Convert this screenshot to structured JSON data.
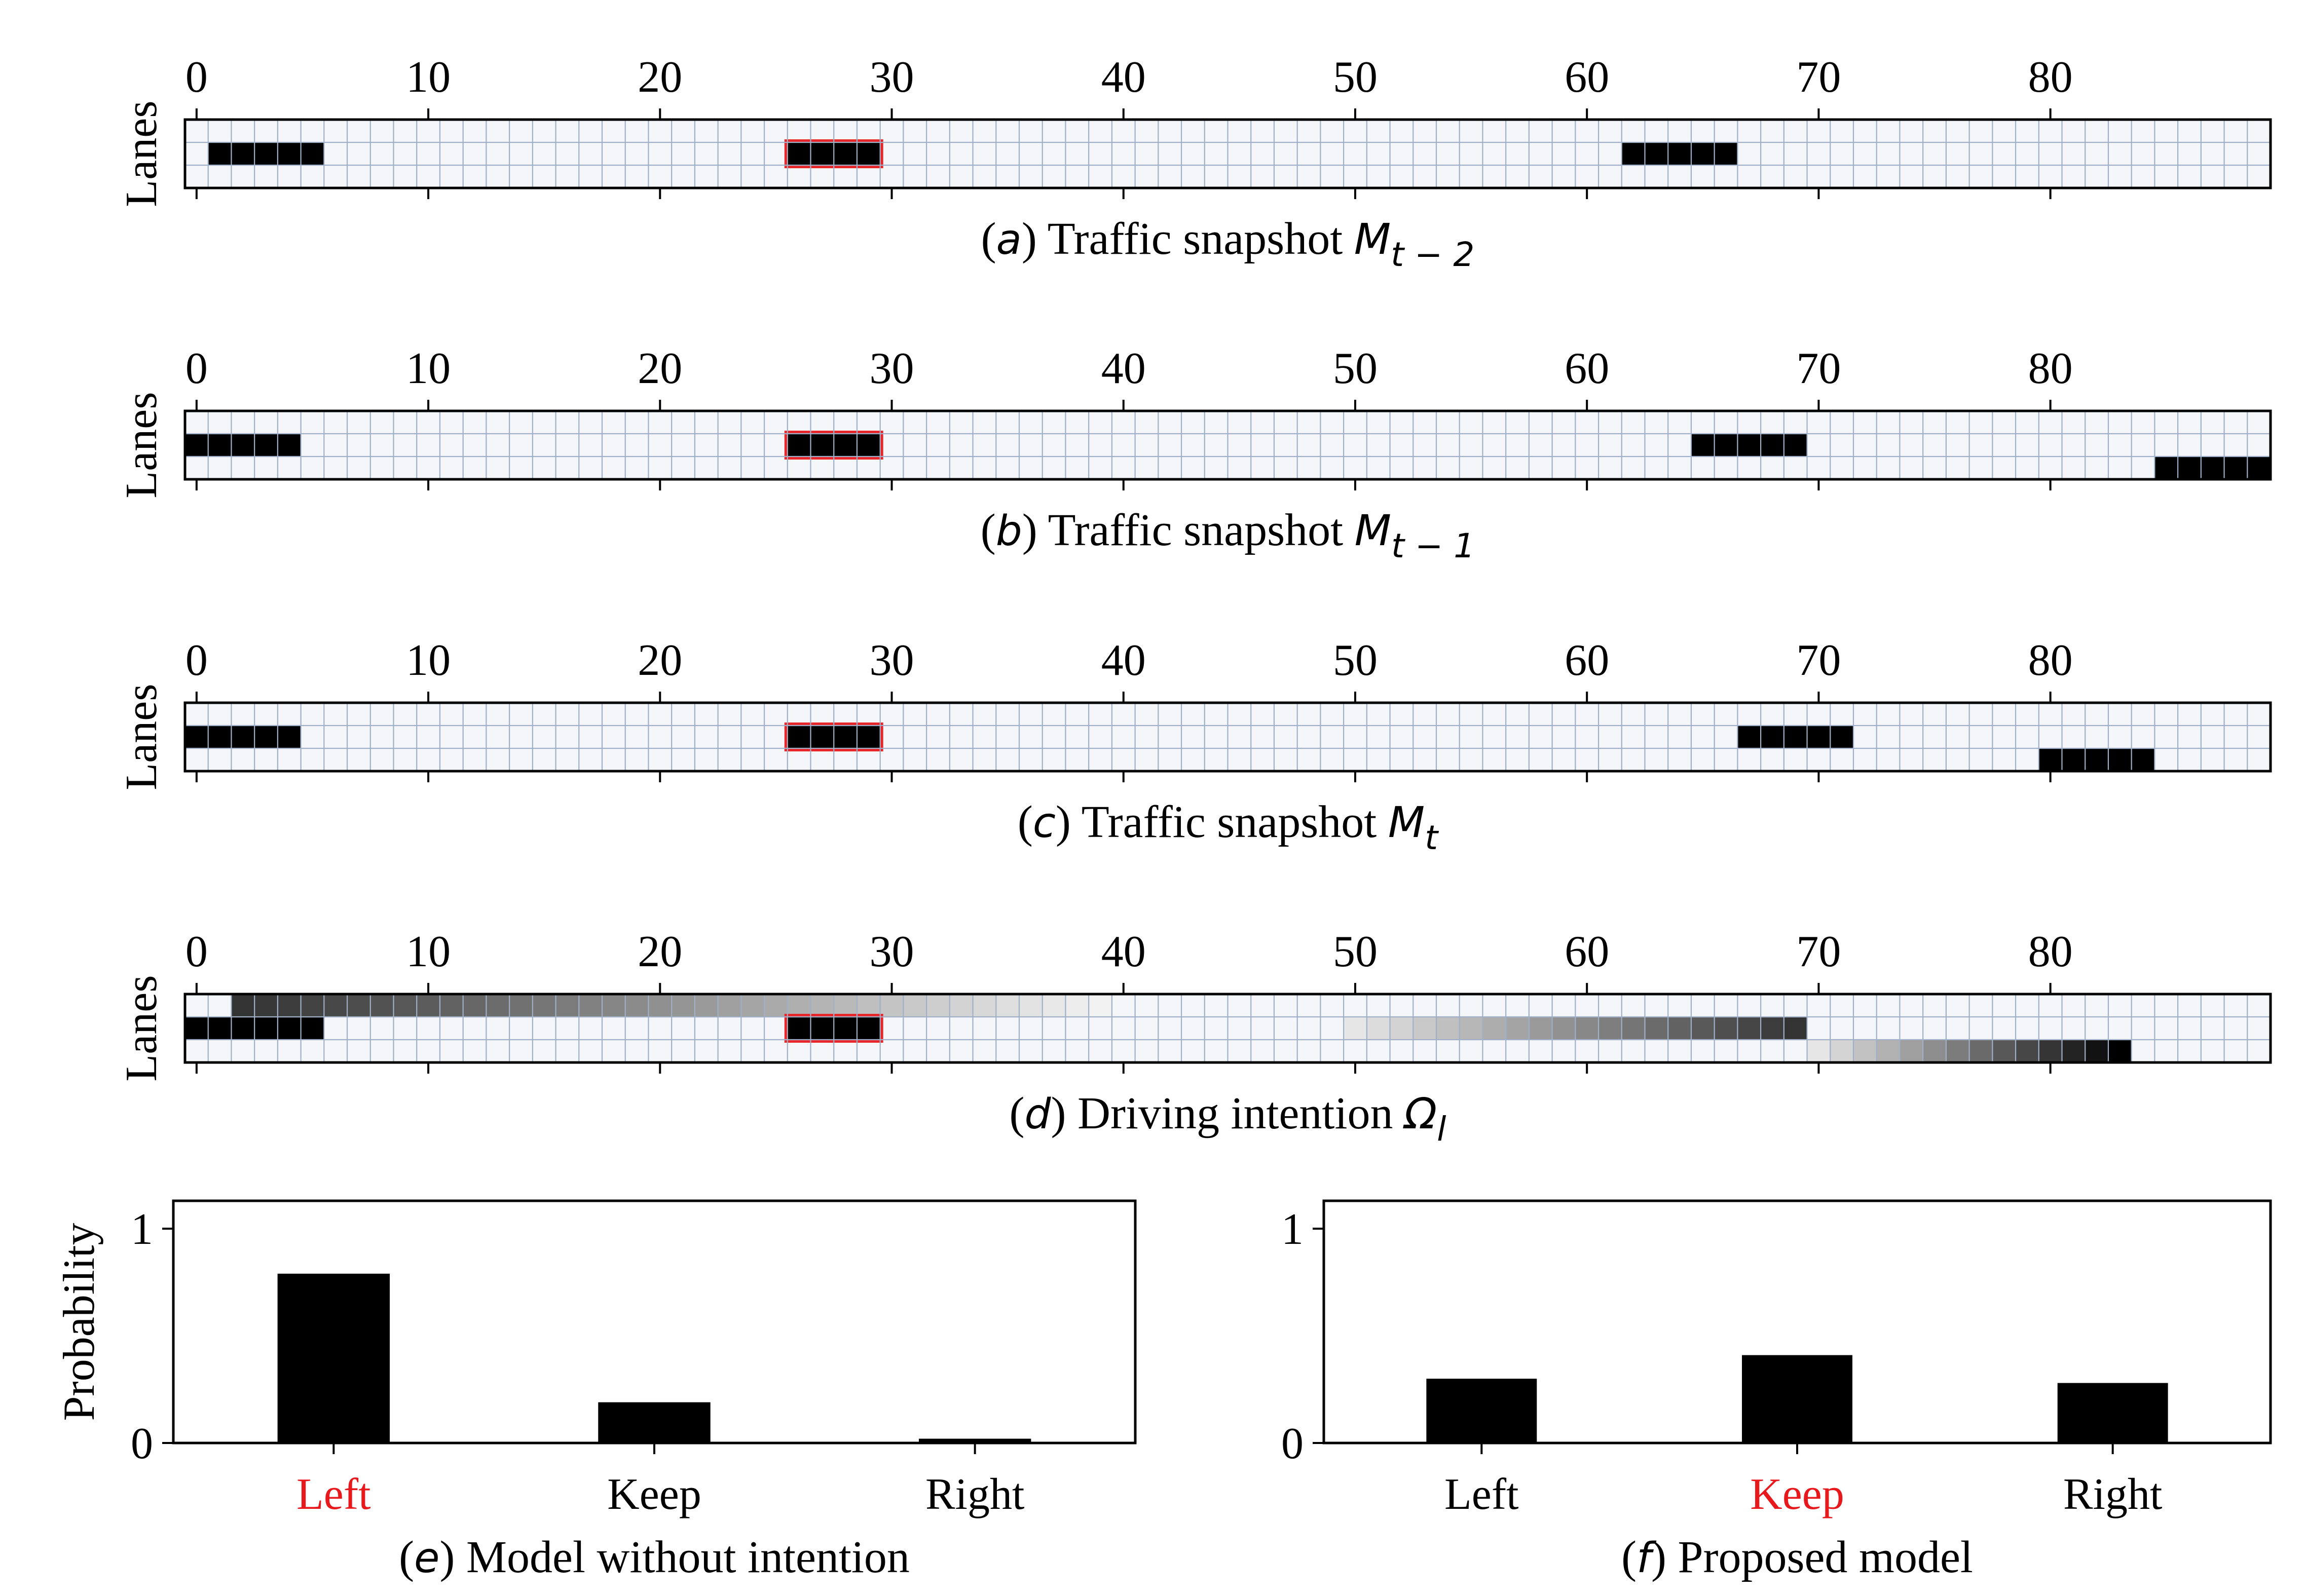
{
  "chart_data": [
    {
      "type": "heatmap",
      "title_prefix": "(",
      "panel_letter": "a",
      "title_text": ") Traffic snapshot ",
      "title_symbol": "M",
      "title_subscript": "t − 2",
      "ylabel": "Lanes",
      "xticks": [
        "0",
        "10",
        "20",
        "30",
        "40",
        "50",
        "60",
        "70",
        "80"
      ],
      "xlim": [
        -0.5,
        89.5
      ],
      "lanes": 3,
      "grid": true,
      "vehicles": [
        {
          "lane": 1,
          "start": 0.5,
          "end": 5.5,
          "ego": false
        },
        {
          "lane": 1,
          "start": 25.5,
          "end": 29.5,
          "ego": true
        },
        {
          "lane": 1,
          "start": 61.5,
          "end": 66.5,
          "ego": false
        }
      ]
    },
    {
      "type": "heatmap",
      "title_prefix": "(",
      "panel_letter": "b",
      "title_text": ") Traffic snapshot ",
      "title_symbol": "M",
      "title_subscript": "t − 1",
      "ylabel": "Lanes",
      "xticks": [
        "0",
        "10",
        "20",
        "30",
        "40",
        "50",
        "60",
        "70",
        "80"
      ],
      "xlim": [
        -0.5,
        89.5
      ],
      "lanes": 3,
      "grid": true,
      "vehicles": [
        {
          "lane": 1,
          "start": -0.5,
          "end": 4.5,
          "ego": false
        },
        {
          "lane": 1,
          "start": 25.5,
          "end": 29.5,
          "ego": true
        },
        {
          "lane": 1,
          "start": 64.5,
          "end": 69.5,
          "ego": false
        },
        {
          "lane": 2,
          "start": 84.5,
          "end": 89.5,
          "ego": false
        }
      ]
    },
    {
      "type": "heatmap",
      "title_prefix": "(",
      "panel_letter": "c",
      "title_text": ") Traffic snapshot ",
      "title_symbol": "M",
      "title_subscript": "t",
      "ylabel": "Lanes",
      "xticks": [
        "0",
        "10",
        "20",
        "30",
        "40",
        "50",
        "60",
        "70",
        "80"
      ],
      "xlim": [
        -0.5,
        89.5
      ],
      "lanes": 3,
      "grid": true,
      "vehicles": [
        {
          "lane": 1,
          "start": -0.5,
          "end": 4.5,
          "ego": false
        },
        {
          "lane": 1,
          "start": 25.5,
          "end": 29.5,
          "ego": true
        },
        {
          "lane": 1,
          "start": 66.5,
          "end": 71.5,
          "ego": false
        },
        {
          "lane": 2,
          "start": 79.5,
          "end": 84.5,
          "ego": false
        }
      ]
    },
    {
      "type": "heatmap",
      "title_prefix": "(",
      "panel_letter": "d",
      "title_text": ") Driving intention ",
      "title_symbol": "Ω",
      "title_subscript": "l",
      "ylabel": "Lanes",
      "xticks": [
        "0",
        "10",
        "20",
        "30",
        "40",
        "50",
        "60",
        "70",
        "80"
      ],
      "xlim": [
        -0.5,
        89.5
      ],
      "lanes": 3,
      "grid": true,
      "vehicles": [
        {
          "lane": 1,
          "start": -0.5,
          "end": 5.5,
          "ego": false
        },
        {
          "lane": 1,
          "start": 25.5,
          "end": 29.5,
          "ego": true
        }
      ],
      "intention_gradients": [
        {
          "lane": 0,
          "start": 1.5,
          "end": 39.5,
          "intensity_start": 0.8,
          "intensity_end": 0.05
        },
        {
          "lane": 1,
          "start": 49.5,
          "end": 69.5,
          "intensity_start": 0.1,
          "intensity_end": 0.8
        },
        {
          "lane": 2,
          "start": 69.5,
          "end": 83.5,
          "intensity_start": 0.1,
          "intensity_end": 1.0
        }
      ]
    },
    {
      "type": "bar",
      "title_prefix": "(",
      "panel_letter": "e",
      "title_text": ") Model without intention",
      "ylabel": "Probability",
      "categories": [
        "Left",
        "Keep",
        "Right"
      ],
      "values": [
        0.79,
        0.19,
        0.02
      ],
      "highlight_category": "Left",
      "yticks": [
        "0",
        "1"
      ],
      "ylim": [
        0,
        1
      ]
    },
    {
      "type": "bar",
      "title_prefix": "(",
      "panel_letter": "f",
      "title_text": ") Proposed model",
      "ylabel": "",
      "categories": [
        "Left",
        "Keep",
        "Right"
      ],
      "values": [
        0.3,
        0.41,
        0.28
      ],
      "highlight_category": "Keep",
      "yticks": [
        "0",
        "1"
      ],
      "ylim": [
        0,
        1
      ]
    }
  ],
  "colors": {
    "vehicle": "#000000",
    "ego_outline": "#e8262a",
    "grid": "#9fb0c8",
    "cell_bg": "#f4f6fa",
    "bar": "#000000",
    "highlight_text": "#e8191c",
    "text": "#000000"
  }
}
